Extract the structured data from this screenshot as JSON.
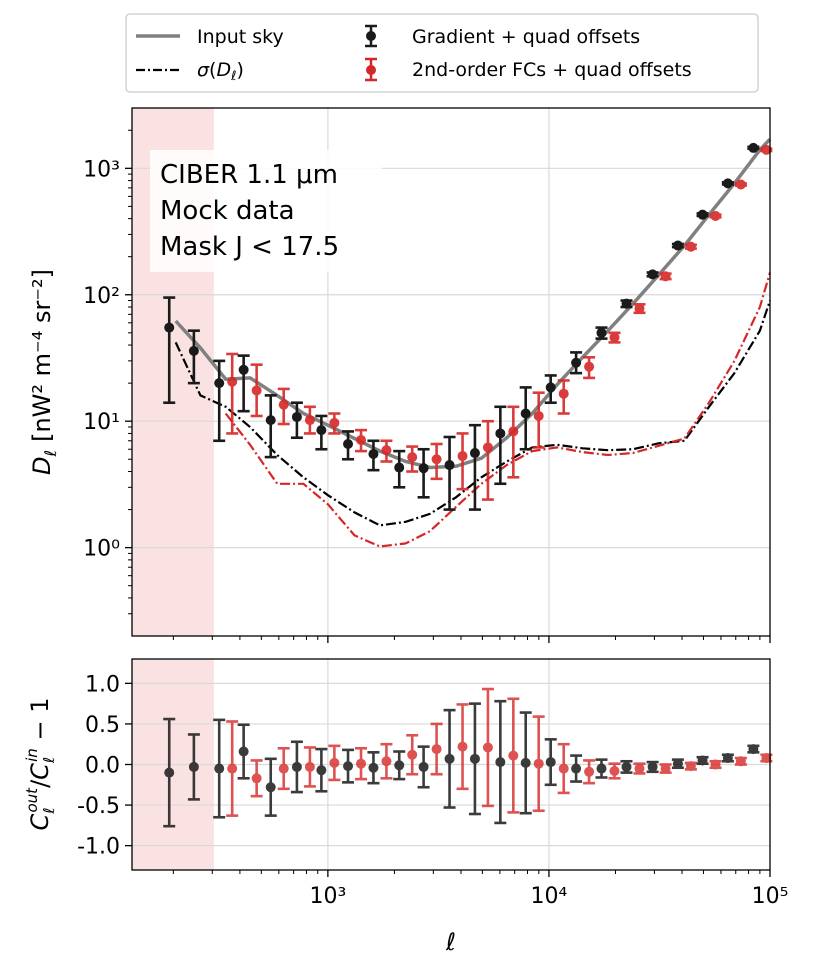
{
  "chart_data": {
    "type": "scatter",
    "annotation_lines": [
      "CIBER 1.1 μm",
      "Mock data",
      "Mask J < 17.5"
    ],
    "ell": [
      205,
      265,
      345,
      445,
      590,
      775,
      1000,
      1320,
      1720,
      2250,
      2900,
      3800,
      4950,
      6450,
      8400,
      10900,
      14200,
      18500,
      24000,
      31500,
      41000,
      53000,
      69000,
      90000
    ],
    "masked_region": {
      "ell_min": 130,
      "ell_max": 305,
      "color": "#f5c6c8"
    },
    "colors": {
      "gradient": "#1a1a1a",
      "fc": "#d62728",
      "input": "#808080",
      "sigma_fc": "#d62728",
      "sigma_grad": "#000000"
    },
    "legend": {
      "input_sky": "Input sky",
      "sigma": "σ(D_ℓ)",
      "gradient": "Gradient + quad offsets",
      "fc": "2nd-order FCs + quad offsets"
    },
    "top_panel": {
      "xlim": [
        130,
        100000
      ],
      "ylim": [
        0.2,
        3000
      ],
      "ylabel_main": "D",
      "ylabel_sub": "ℓ",
      "ylabel_unit": "[nW² m⁻⁴ sr⁻²]",
      "yticks": [
        1,
        10,
        100,
        1000
      ],
      "ytick_labels": [
        "10⁰",
        "10¹",
        "10²",
        "10³"
      ],
      "input_sky": {
        "ell": [
          205,
          265,
          345,
          445,
          590,
          775,
          1000,
          1320,
          1720,
          2250,
          2900,
          3800,
          4950,
          6450,
          8400,
          10900,
          14200,
          18500,
          24000,
          31500,
          41000,
          53000,
          69000,
          90000,
          100000
        ],
        "values": [
          62,
          38,
          21.5,
          22,
          16,
          11.5,
          9.3,
          7.3,
          5.8,
          4.8,
          4.3,
          4.4,
          5.1,
          7.4,
          11.5,
          19.5,
          32,
          52,
          85,
          145,
          245,
          430,
          760,
          1400,
          1700
        ]
      },
      "sigma_gradient": {
        "ell": [
          205,
          265,
          345,
          445,
          590,
          775,
          1000,
          1320,
          1720,
          2250,
          2900,
          3800,
          4950,
          6450,
          8400,
          10900,
          14200,
          18500,
          24000,
          31500,
          41000,
          53000,
          69000,
          90000,
          100000
        ],
        "values": [
          42,
          16,
          13,
          9.0,
          5.4,
          3.6,
          2.6,
          1.9,
          1.5,
          1.6,
          1.85,
          2.5,
          3.6,
          4.8,
          6.2,
          6.5,
          6.1,
          5.9,
          6.0,
          6.7,
          7.0,
          13,
          24,
          52,
          90
        ]
      },
      "sigma_fc": {
        "ell": [
          345,
          445,
          590,
          775,
          1000,
          1320,
          1720,
          2250,
          2900,
          3800,
          4950,
          6450,
          8400,
          10900,
          14200,
          18500,
          24000,
          31500,
          41000,
          53000,
          69000,
          90000,
          100000
        ],
        "values": [
          11.5,
          6.5,
          3.2,
          3.2,
          2.2,
          1.25,
          1.02,
          1.08,
          1.35,
          2.1,
          3.2,
          4.5,
          5.8,
          6.2,
          5.7,
          5.4,
          5.6,
          6.4,
          7.3,
          14,
          30,
          80,
          150
        ]
      },
      "gradient": {
        "values": [
          55,
          36,
          20,
          25.5,
          10.2,
          10.8,
          8.5,
          6.6,
          5.5,
          4.3,
          4.25,
          4.5,
          5.6,
          8.0,
          11.5,
          18.5,
          29,
          50,
          85,
          145,
          245,
          430,
          760,
          1450
        ],
        "err_lo": [
          14,
          20,
          7,
          12,
          5.2,
          7.4,
          6.0,
          5.0,
          4.1,
          3.0,
          2.5,
          2.0,
          2.0,
          3.2,
          6.0,
          14,
          24,
          45,
          80,
          140,
          238,
          420,
          745,
          1430
        ],
        "err_hi": [
          95,
          52,
          30,
          33,
          16,
          14,
          11,
          8.3,
          7.0,
          5.8,
          6.0,
          7.5,
          9.3,
          13,
          18.5,
          23,
          35,
          55,
          90,
          150,
          252,
          440,
          775,
          1480
        ]
      },
      "fc": {
        "values": [
          null,
          null,
          20.5,
          17.5,
          13.5,
          10.2,
          9.7,
          7.1,
          5.9,
          5.2,
          5.0,
          5.3,
          6.2,
          8.3,
          11.0,
          16.5,
          27,
          46,
          78,
          140,
          240,
          420,
          745,
          1400
        ],
        "err_lo": [
          null,
          null,
          8,
          11,
          9.5,
          8.0,
          8.0,
          5.8,
          4.8,
          4.0,
          3.5,
          2.9,
          2.4,
          3.6,
          6.2,
          11.5,
          22,
          42,
          72,
          133,
          232,
          410,
          730,
          1370
        ],
        "err_hi": [
          null,
          null,
          34,
          28,
          18,
          13,
          11.5,
          8.5,
          7.0,
          6.3,
          6.6,
          8.0,
          10,
          13,
          16.8,
          21,
          32,
          50,
          84,
          147,
          248,
          430,
          760,
          1430
        ]
      }
    },
    "bottom_panel": {
      "xlim": [
        130,
        100000
      ],
      "ylim": [
        -1.3,
        1.3
      ],
      "ylabel": "C_ℓ^out / C_ℓ^in − 1",
      "yticks": [
        -1.0,
        -0.5,
        0.0,
        0.5,
        1.0
      ],
      "ytick_labels": [
        "-1.0",
        "-0.5",
        "0.0",
        "0.5",
        "1.0"
      ],
      "xticks": [
        1000,
        10000,
        100000
      ],
      "xtick_labels": [
        "10³",
        "10⁴",
        "10⁵"
      ],
      "xlabel": "ℓ",
      "gradient": {
        "values": [
          -0.1,
          -0.03,
          -0.05,
          0.16,
          -0.28,
          -0.03,
          -0.07,
          -0.02,
          -0.04,
          -0.01,
          -0.03,
          0.07,
          0.07,
          0.03,
          0.02,
          0.03,
          -0.05,
          -0.05,
          -0.03,
          -0.03,
          0.01,
          0.05,
          0.08,
          0.19
        ],
        "err": [
          0.66,
          0.4,
          0.6,
          0.33,
          0.35,
          0.31,
          0.26,
          0.2,
          0.19,
          0.17,
          0.25,
          0.6,
          0.68,
          0.75,
          0.62,
          0.28,
          0.16,
          0.11,
          0.07,
          0.06,
          0.05,
          0.04,
          0.04,
          0.04
        ]
      },
      "fc": {
        "values": [
          null,
          null,
          -0.05,
          -0.17,
          -0.05,
          -0.03,
          0.02,
          0.01,
          0.04,
          0.12,
          0.19,
          0.22,
          0.21,
          0.11,
          0.01,
          -0.05,
          -0.09,
          -0.08,
          -0.05,
          -0.05,
          -0.02,
          0.0,
          0.04,
          0.08
        ],
        "err": [
          null,
          null,
          0.58,
          0.22,
          0.25,
          0.24,
          0.21,
          0.19,
          0.21,
          0.24,
          0.31,
          0.52,
          0.72,
          0.7,
          0.58,
          0.3,
          0.14,
          0.09,
          0.06,
          0.05,
          0.04,
          0.04,
          0.04,
          0.04
        ]
      }
    }
  }
}
